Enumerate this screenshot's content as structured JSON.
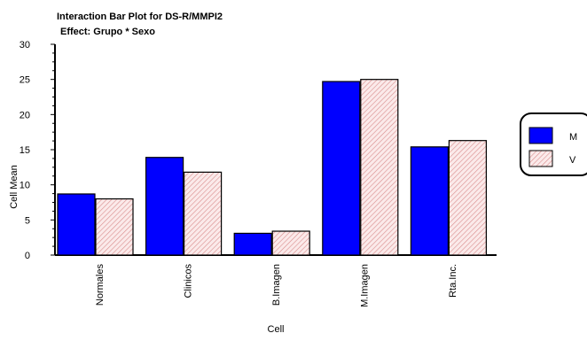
{
  "chart_data": {
    "type": "bar",
    "title": "Interaction Bar Plot for DS-R/MMPI2",
    "subtitle": "Effect: Grupo * Sexo",
    "xlabel": "Cell",
    "ylabel": "Cell Mean",
    "categories": [
      "Normales",
      "Clinicos",
      "B.Imagen",
      "M.Imagen",
      "Rta.Inc."
    ],
    "series": [
      {
        "name": "M",
        "values": [
          8.7,
          13.9,
          3.1,
          24.7,
          15.4
        ],
        "color": "#0000ff",
        "pattern": "solid"
      },
      {
        "name": "V",
        "values": [
          8.0,
          11.8,
          3.4,
          25.0,
          16.3
        ],
        "color": "#f2c2c2",
        "pattern": "red-diagonal-hatch"
      }
    ],
    "yticks": [
      0,
      5,
      10,
      15,
      20,
      25,
      30
    ],
    "ylim": [
      0,
      30
    ],
    "grid": false,
    "legend_position": "right"
  }
}
